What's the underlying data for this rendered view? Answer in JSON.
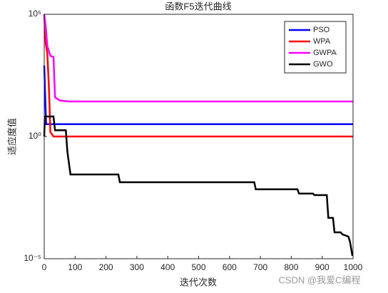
{
  "chart_data": {
    "type": "line",
    "title": "函数F5迭代曲线",
    "xlabel": "迭代次数",
    "ylabel": "适应度值",
    "watermark": "CSDN @我爱C编程",
    "xlim": [
      0,
      1000
    ],
    "xticks": [
      0,
      100,
      200,
      300,
      400,
      500,
      600,
      700,
      800,
      900,
      1000
    ],
    "ylim": [
      1e-05,
      100000
    ],
    "log_y": true,
    "yticks": [
      {
        "value": 1e-05,
        "label": "10⁻⁵"
      },
      {
        "value": 1,
        "label": "10⁰"
      },
      {
        "value": 100000,
        "label": "10⁵"
      }
    ],
    "legend": "upper right",
    "series": [
      {
        "name": "PSO",
        "color": "#0000ff",
        "x": [
          0,
          3,
          6,
          1000
        ],
        "values": [
          800,
          50,
          3.2,
          3.2
        ]
      },
      {
        "name": "WPA",
        "color": "#ff0000",
        "x": [
          0,
          5,
          10,
          15,
          20,
          30,
          1000
        ],
        "values": [
          100000,
          6000,
          2500,
          120,
          1.5,
          1.0,
          1.0
        ]
      },
      {
        "name": "GWPA",
        "color": "#ff00ff",
        "x": [
          0,
          5,
          10,
          20,
          30,
          35,
          50,
          80,
          1000
        ],
        "values": [
          100000,
          30000,
          5000,
          2000,
          1800,
          40,
          30,
          27,
          27
        ]
      },
      {
        "name": "GWO",
        "color": "#000000",
        "x": [
          0,
          2,
          30,
          35,
          70,
          75,
          85,
          240,
          245,
          680,
          685,
          820,
          825,
          870,
          875,
          915,
          920,
          935,
          940,
          960,
          965,
          985,
          990,
          998
        ],
        "values": [
          1,
          6.6,
          6.6,
          1.8,
          1.8,
          0.24,
          0.028,
          0.028,
          0.0135,
          0.0135,
          0.0069,
          0.0069,
          0.0046,
          0.0046,
          0.004,
          0.004,
          0.00047,
          0.00047,
          0.00012,
          0.00012,
          0.0001,
          8e-05,
          5e-05,
          1.3e-05
        ]
      }
    ]
  }
}
